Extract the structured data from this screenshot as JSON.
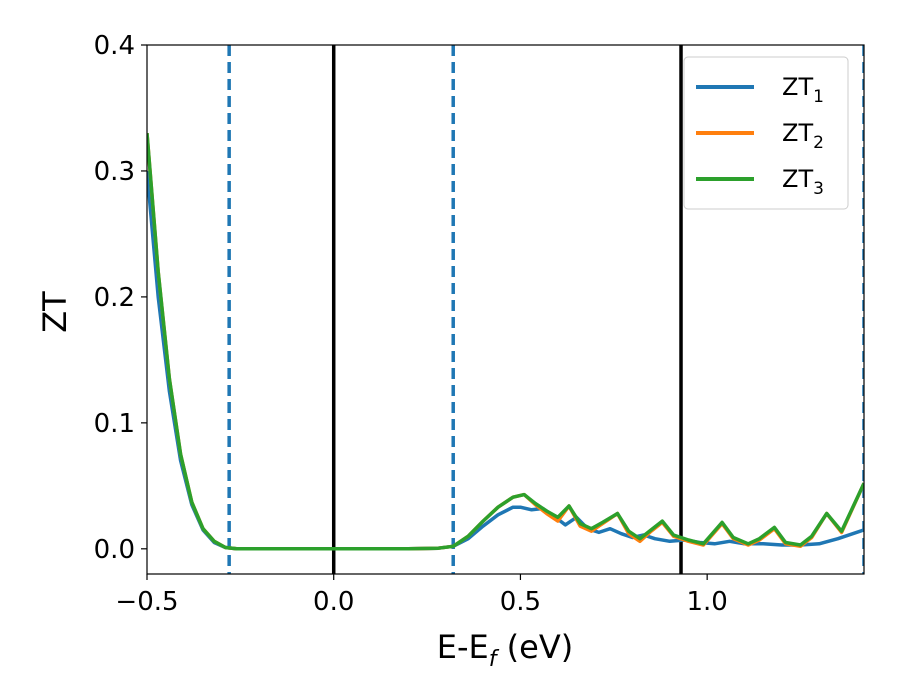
{
  "chart_data": {
    "type": "line",
    "title": "",
    "xlabel": "E-E",
    "xlabel_subscript": "f",
    "xlabel_unit": " (eV)",
    "ylabel": "ZT",
    "xlim": [
      -0.5,
      1.42
    ],
    "ylim": [
      -0.02,
      0.4
    ],
    "xticks": [
      -0.5,
      0.0,
      0.5,
      1.0
    ],
    "xtick_labels": [
      "−0.5",
      "0.0",
      "0.5",
      "1.0"
    ],
    "yticks": [
      0.0,
      0.1,
      0.2,
      0.3,
      0.4
    ],
    "ytick_labels": [
      "0.0",
      "0.1",
      "0.2",
      "0.3",
      "0.4"
    ],
    "grid": false,
    "legend_position": "top-right",
    "vertical_lines": [
      {
        "x": -0.28,
        "style": "dashed",
        "color": "#1f77b4"
      },
      {
        "x": 0.0,
        "style": "solid",
        "color": "#000000"
      },
      {
        "x": 0.32,
        "style": "dashed",
        "color": "#1f77b4"
      },
      {
        "x": 0.93,
        "style": "solid",
        "color": "#000000"
      },
      {
        "x": 1.42,
        "style": "dashed",
        "color": "#1f77b4"
      }
    ],
    "series": [
      {
        "name": "ZT",
        "name_subscript": "1",
        "color": "#1f77b4",
        "x": [
          -0.5,
          -0.47,
          -0.44,
          -0.41,
          -0.38,
          -0.35,
          -0.32,
          -0.29,
          -0.26,
          -0.2,
          -0.1,
          0.0,
          0.1,
          0.2,
          0.28,
          0.32,
          0.36,
          0.4,
          0.44,
          0.48,
          0.5,
          0.53,
          0.56,
          0.59,
          0.62,
          0.65,
          0.68,
          0.71,
          0.74,
          0.77,
          0.8,
          0.83,
          0.86,
          0.9,
          0.94,
          0.98,
          1.02,
          1.06,
          1.1,
          1.15,
          1.2,
          1.25,
          1.3,
          1.35,
          1.42
        ],
        "y": [
          0.3,
          0.2,
          0.125,
          0.07,
          0.035,
          0.015,
          0.005,
          0.001,
          0.0,
          0.0,
          0.0,
          0.0,
          0.0,
          0.0,
          0.0005,
          0.002,
          0.008,
          0.018,
          0.027,
          0.033,
          0.033,
          0.031,
          0.032,
          0.026,
          0.019,
          0.025,
          0.016,
          0.013,
          0.016,
          0.012,
          0.009,
          0.011,
          0.008,
          0.006,
          0.007,
          0.005,
          0.004,
          0.006,
          0.004,
          0.004,
          0.003,
          0.003,
          0.004,
          0.008,
          0.015
        ]
      },
      {
        "name": "ZT",
        "name_subscript": "2",
        "color": "#ff7f0e",
        "x": [
          -0.5,
          -0.47,
          -0.44,
          -0.41,
          -0.38,
          -0.35,
          -0.32,
          -0.29,
          -0.26,
          -0.2,
          -0.1,
          0.0,
          0.1,
          0.2,
          0.28,
          0.32,
          0.36,
          0.4,
          0.44,
          0.48,
          0.51,
          0.54,
          0.57,
          0.6,
          0.63,
          0.66,
          0.69,
          0.72,
          0.76,
          0.79,
          0.82,
          0.85,
          0.88,
          0.91,
          0.95,
          0.99,
          1.04,
          1.07,
          1.11,
          1.14,
          1.18,
          1.21,
          1.25,
          1.28,
          1.32,
          1.36,
          1.42
        ],
        "y": [
          0.33,
          0.22,
          0.135,
          0.075,
          0.037,
          0.016,
          0.006,
          0.001,
          0.0,
          0.0,
          0.0,
          0.0,
          0.0,
          0.0,
          0.0005,
          0.002,
          0.01,
          0.022,
          0.033,
          0.041,
          0.043,
          0.035,
          0.028,
          0.022,
          0.034,
          0.018,
          0.014,
          0.02,
          0.028,
          0.012,
          0.006,
          0.014,
          0.021,
          0.01,
          0.006,
          0.003,
          0.02,
          0.008,
          0.003,
          0.007,
          0.016,
          0.004,
          0.002,
          0.009,
          0.028,
          0.013,
          0.052
        ]
      },
      {
        "name": "ZT",
        "name_subscript": "3",
        "color": "#2ca02c",
        "x": [
          -0.5,
          -0.47,
          -0.44,
          -0.41,
          -0.38,
          -0.35,
          -0.32,
          -0.29,
          -0.26,
          -0.2,
          -0.1,
          0.0,
          0.1,
          0.2,
          0.28,
          0.32,
          0.36,
          0.4,
          0.44,
          0.48,
          0.51,
          0.54,
          0.57,
          0.6,
          0.63,
          0.66,
          0.69,
          0.72,
          0.76,
          0.79,
          0.82,
          0.85,
          0.88,
          0.91,
          0.95,
          0.99,
          1.04,
          1.07,
          1.11,
          1.14,
          1.18,
          1.21,
          1.25,
          1.28,
          1.32,
          1.36,
          1.42
        ],
        "y": [
          0.33,
          0.22,
          0.135,
          0.075,
          0.037,
          0.016,
          0.006,
          0.001,
          0.0,
          0.0,
          0.0,
          0.0,
          0.0,
          0.0,
          0.0005,
          0.002,
          0.01,
          0.022,
          0.033,
          0.041,
          0.043,
          0.036,
          0.03,
          0.025,
          0.034,
          0.02,
          0.016,
          0.021,
          0.028,
          0.014,
          0.008,
          0.015,
          0.022,
          0.011,
          0.007,
          0.004,
          0.021,
          0.009,
          0.004,
          0.008,
          0.017,
          0.005,
          0.003,
          0.01,
          0.028,
          0.014,
          0.052
        ]
      }
    ]
  }
}
